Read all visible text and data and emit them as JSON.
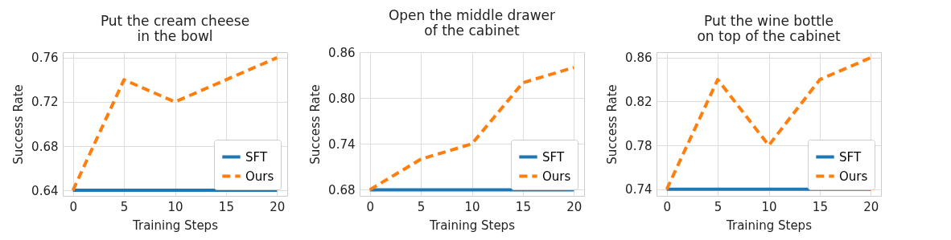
{
  "chart_data": [
    {
      "type": "line",
      "title": "Put the cream cheese\nin the bowl",
      "xlabel": "Training Steps",
      "ylabel": "Success Rate",
      "x": [
        0,
        5,
        10,
        15,
        20
      ],
      "xlim": [
        -1,
        21
      ],
      "xticks": [
        0,
        5,
        10,
        15,
        20
      ],
      "ylim": [
        0.635,
        0.765
      ],
      "yticks": [
        0.64,
        0.68,
        0.72,
        0.76
      ],
      "grid": true,
      "legend": "bottom right",
      "series": [
        {
          "name": "SFT",
          "color": "#1f77b4",
          "line_style": "solid",
          "values": [
            0.64,
            0.64,
            0.64,
            0.64,
            0.64
          ]
        },
        {
          "name": "Ours",
          "color": "#ff7f0e",
          "line_style": "dashed",
          "values": [
            0.64,
            0.74,
            0.72,
            0.74,
            0.76
          ]
        }
      ]
    },
    {
      "type": "line",
      "title": "Open the middle drawer\nof the cabinet",
      "xlabel": "Training Steps",
      "ylabel": "Success Rate",
      "x": [
        0,
        5,
        10,
        15,
        20
      ],
      "xlim": [
        -1,
        21
      ],
      "xticks": [
        0,
        5,
        10,
        15,
        20
      ],
      "ylim": [
        0.672,
        0.86
      ],
      "yticks": [
        0.68,
        0.74,
        {
          "value": 0.8,
          "label": "0.80"
        },
        0.86
      ],
      "grid": true,
      "legend": "bottom right",
      "series": [
        {
          "name": "SFT",
          "color": "#1f77b4",
          "line_style": "solid",
          "values": [
            0.68,
            0.68,
            0.68,
            0.68,
            0.68
          ]
        },
        {
          "name": "Ours",
          "color": "#ff7f0e",
          "line_style": "dashed",
          "values": [
            0.68,
            0.72,
            0.74,
            0.82,
            0.84
          ]
        }
      ]
    },
    {
      "type": "line",
      "title": "Put the wine bottle\non top of the cabinet",
      "xlabel": "Training Steps",
      "ylabel": "Success Rate",
      "x": [
        0,
        5,
        10,
        15,
        20
      ],
      "xlim": [
        -1,
        21
      ],
      "xticks": [
        0,
        5,
        10,
        15,
        20
      ],
      "ylim": [
        0.734,
        0.865
      ],
      "yticks": [
        0.74,
        0.78,
        0.82,
        0.86
      ],
      "grid": true,
      "legend": "bottom right",
      "series": [
        {
          "name": "SFT",
          "color": "#1f77b4",
          "line_style": "solid",
          "values": [
            0.74,
            0.74,
            0.74,
            0.74,
            0.74
          ]
        },
        {
          "name": "Ours",
          "color": "#ff7f0e",
          "line_style": "dashed",
          "values": [
            0.74,
            0.84,
            0.78,
            0.84,
            0.86
          ]
        }
      ]
    }
  ]
}
